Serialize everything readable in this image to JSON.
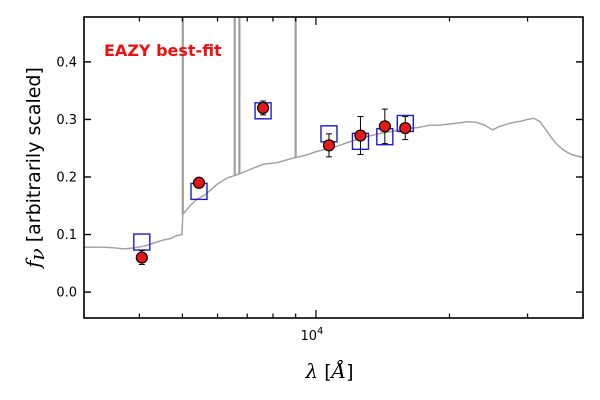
{
  "chart_data": {
    "type": "scatter",
    "title": "",
    "xlabel": "λ [Å]",
    "ylabel": "f_ν [arbitrarily scaled]",
    "xscale": "log",
    "xlim": [
      3000,
      40000
    ],
    "ylim": [
      -0.045,
      0.478
    ],
    "x_ticks": [
      {
        "value": 10000,
        "label": "10^4"
      }
    ],
    "y_ticks": [
      {
        "value": 0.0,
        "label": "0.0"
      },
      {
        "value": 0.1,
        "label": "0.1"
      },
      {
        "value": 0.2,
        "label": "0.2"
      },
      {
        "value": 0.3,
        "label": "0.3"
      },
      {
        "value": 0.4,
        "label": "0.4"
      }
    ],
    "grid": false,
    "annotation": {
      "text": "EAZY best-fit",
      "color": "#ee1111",
      "placement": "top-left"
    },
    "colors": {
      "template": "#9e9e9e",
      "model_box": "#1c1ccc",
      "observed_fill": "#e41a1a",
      "observed_edge": "#000000"
    },
    "series": [
      {
        "kind": "template-line",
        "x": [
          3000,
          3300,
          3500,
          3700,
          3900,
          4100,
          4300,
          4500,
          4700,
          4850,
          4990,
          5010,
          5200,
          5400,
          5600,
          5800,
          6000,
          6300,
          6700,
          7100,
          7600,
          8200,
          8800,
          9500,
          10000,
          11000,
          12000,
          13000,
          14000,
          15000,
          16000,
          17000,
          18000,
          19000,
          20000,
          21000,
          22000,
          23000,
          24000,
          25000,
          26000,
          27000,
          28000,
          29000,
          30000,
          31000,
          32000,
          33000,
          34000,
          35000,
          36000,
          37000,
          38000,
          40000
        ],
        "y": [
          0.078,
          0.078,
          0.077,
          0.075,
          0.077,
          0.08,
          0.085,
          0.09,
          0.093,
          0.098,
          0.1,
          0.135,
          0.15,
          0.162,
          0.168,
          0.178,
          0.188,
          0.198,
          0.205,
          0.213,
          0.222,
          0.225,
          0.232,
          0.238,
          0.244,
          0.252,
          0.262,
          0.27,
          0.276,
          0.28,
          0.284,
          0.286,
          0.29,
          0.29,
          0.292,
          0.294,
          0.296,
          0.295,
          0.29,
          0.282,
          0.288,
          0.292,
          0.295,
          0.297,
          0.3,
          0.302,
          0.296,
          0.282,
          0.268,
          0.256,
          0.248,
          0.242,
          0.238,
          0.234
        ]
      },
      {
        "kind": "emission-lines",
        "x": [
          5010,
          6560,
          6720,
          9000
        ],
        "y_peak": [
          0.478,
          0.478,
          0.478,
          0.478
        ]
      },
      {
        "kind": "model-photometry",
        "x": [
          4050,
          5450,
          7600,
          10700,
          12600,
          14300,
          15900
        ],
        "y": [
          0.087,
          0.175,
          0.315,
          0.275,
          0.262,
          0.27,
          0.293
        ]
      },
      {
        "kind": "observed-photometry",
        "x": [
          4050,
          5450,
          7600,
          10700,
          12600,
          14300,
          15900
        ],
        "y": [
          0.06,
          0.19,
          0.32,
          0.255,
          0.272,
          0.288,
          0.285
        ],
        "yerr": [
          0.012,
          0.006,
          0.012,
          0.02,
          0.033,
          0.03,
          0.02
        ]
      }
    ]
  }
}
